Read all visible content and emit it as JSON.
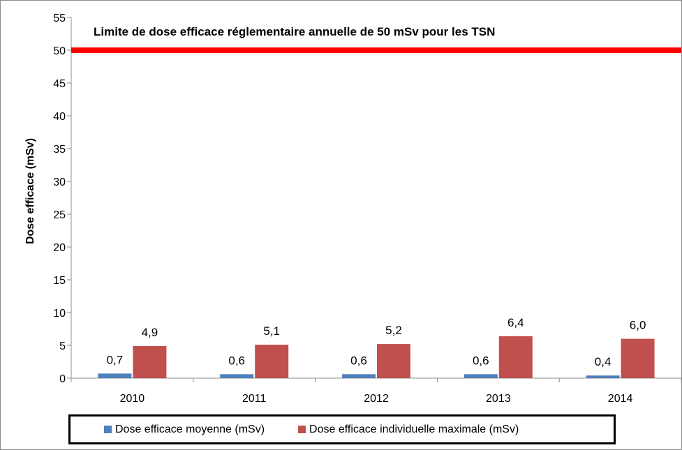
{
  "chart_data": {
    "type": "bar",
    "title": "",
    "xlabel": "",
    "ylabel": "Dose efficace  (mSv)",
    "ylim": [
      0,
      55
    ],
    "yticks": [
      "0",
      "5",
      "10",
      "15",
      "20",
      "25",
      "30",
      "35",
      "40",
      "45",
      "50",
      "55"
    ],
    "categories": [
      "2010",
      "2011",
      "2012",
      "2013",
      "2014"
    ],
    "series": [
      {
        "name": "Dose efficace moyenne (mSv)",
        "color": "#4f81bd",
        "values": [
          0.7,
          0.6,
          0.6,
          0.6,
          0.4
        ],
        "labels": [
          "0,7",
          "0,6",
          "0,6",
          "0,6",
          "0,4"
        ]
      },
      {
        "name": "Dose efficace individuelle maximale (mSv)",
        "color": "#c0504d",
        "values": [
          4.9,
          5.1,
          5.2,
          6.4,
          6.0
        ],
        "labels": [
          "4,9",
          "5,1",
          "5,2",
          "6,4",
          "6,0"
        ]
      }
    ],
    "reference_line": {
      "value": 50,
      "color": "#ff0000",
      "label": "Limite de dose  efficace réglementaire annuelle de 50 mSv pour  les TSN"
    },
    "grid": false,
    "legend_position": "bottom"
  }
}
